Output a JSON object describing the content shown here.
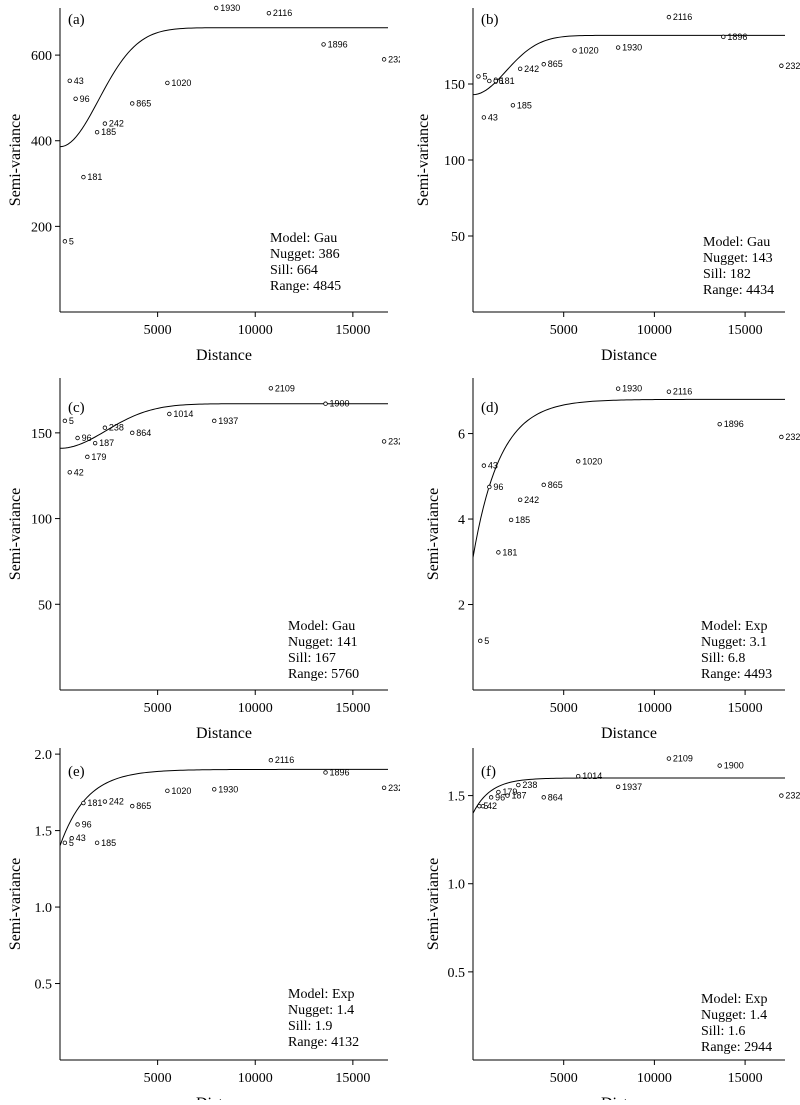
{
  "chart_data": [
    {
      "type": "scatter",
      "panel_label": "(a)",
      "xlabel": "Distance",
      "ylabel": "Semi-variance",
      "xlim": [
        0,
        16800
      ],
      "ylim": [
        0,
        710
      ],
      "xticks": [
        5000,
        10000,
        15000
      ],
      "yticks": [
        200,
        400,
        600
      ],
      "model": {
        "type": "Gau",
        "nugget": 386,
        "sill": 664,
        "range": 4845
      },
      "info": [
        "Model: Gau",
        "Nugget: 386",
        "Sill: 664",
        "Range: 4845"
      ],
      "points": [
        {
          "x": 250,
          "y": 165,
          "label": "5"
        },
        {
          "x": 500,
          "y": 540,
          "label": "43"
        },
        {
          "x": 800,
          "y": 498,
          "label": "96"
        },
        {
          "x": 1200,
          "y": 315,
          "label": "181"
        },
        {
          "x": 1900,
          "y": 420,
          "label": "185"
        },
        {
          "x": 2300,
          "y": 440,
          "label": "242"
        },
        {
          "x": 3700,
          "y": 487,
          "label": "865"
        },
        {
          "x": 5500,
          "y": 535,
          "label": "1020"
        },
        {
          "x": 8000,
          "y": 710,
          "label": "1930"
        },
        {
          "x": 10700,
          "y": 698,
          "label": "2116"
        },
        {
          "x": 13500,
          "y": 625,
          "label": "1896"
        },
        {
          "x": 16600,
          "y": 590,
          "label": "232"
        }
      ]
    },
    {
      "type": "scatter",
      "panel_label": "(b)",
      "xlabel": "Distance",
      "ylabel": "Semi-variance",
      "xlim": [
        0,
        17200
      ],
      "ylim": [
        0,
        200
      ],
      "xticks": [
        5000,
        10000,
        15000
      ],
      "yticks": [
        50,
        100,
        150
      ],
      "model": {
        "type": "Gau",
        "nugget": 143,
        "sill": 182,
        "range": 4434
      },
      "info": [
        "Model: Gau",
        "Nugget: 143",
        "Sill: 182",
        "Range: 4434"
      ],
      "points": [
        {
          "x": 300,
          "y": 155,
          "label": "5"
        },
        {
          "x": 900,
          "y": 152,
          "label": "96"
        },
        {
          "x": 1250,
          "y": 152,
          "label": "181"
        },
        {
          "x": 600,
          "y": 128,
          "label": "43"
        },
        {
          "x": 2200,
          "y": 136,
          "label": "185"
        },
        {
          "x": 2600,
          "y": 160,
          "label": "242"
        },
        {
          "x": 3900,
          "y": 163,
          "label": "865"
        },
        {
          "x": 5600,
          "y": 172,
          "label": "1020"
        },
        {
          "x": 8000,
          "y": 174,
          "label": "1930"
        },
        {
          "x": 10800,
          "y": 194,
          "label": "2116"
        },
        {
          "x": 13800,
          "y": 181,
          "label": "1896"
        },
        {
          "x": 17000,
          "y": 162,
          "label": "232"
        }
      ]
    },
    {
      "type": "scatter",
      "panel_label": "(c)",
      "xlabel": "Distance",
      "ylabel": "Semi-variance",
      "xlim": [
        0,
        16800
      ],
      "ylim": [
        0,
        182
      ],
      "xticks": [
        5000,
        10000,
        15000
      ],
      "yticks": [
        50,
        100,
        150
      ],
      "model": {
        "type": "Gau",
        "nugget": 141,
        "sill": 167,
        "range": 5760
      },
      "info": [
        "Model: Gau",
        "Nugget: 141",
        "Sill: 167",
        "Range: 5760"
      ],
      "points": [
        {
          "x": 250,
          "y": 157,
          "label": "5"
        },
        {
          "x": 900,
          "y": 147,
          "label": "96"
        },
        {
          "x": 500,
          "y": 127,
          "label": "42"
        },
        {
          "x": 1400,
          "y": 136,
          "label": "179"
        },
        {
          "x": 1800,
          "y": 144,
          "label": "187"
        },
        {
          "x": 2300,
          "y": 153,
          "label": "238"
        },
        {
          "x": 3700,
          "y": 150,
          "label": "864"
        },
        {
          "x": 5600,
          "y": 161,
          "label": "1014"
        },
        {
          "x": 7900,
          "y": 157,
          "label": "1937"
        },
        {
          "x": 10800,
          "y": 176,
          "label": "2109"
        },
        {
          "x": 13600,
          "y": 167,
          "label": "1900"
        },
        {
          "x": 16600,
          "y": 145,
          "label": "232"
        }
      ]
    },
    {
      "type": "scatter",
      "panel_label": "(d)",
      "xlabel": "Distance",
      "ylabel": "Semi-variance",
      "xlim": [
        0,
        17200
      ],
      "ylim": [
        0,
        7.3
      ],
      "xticks": [
        5000,
        10000,
        15000
      ],
      "yticks": [
        2,
        4,
        6
      ],
      "model": {
        "type": "Exp",
        "nugget": 3.1,
        "sill": 6.8,
        "range": 4493
      },
      "info": [
        "Model: Exp",
        "Nugget: 3.1",
        "Sill: 6.8",
        "Range: 4493"
      ],
      "points": [
        {
          "x": 400,
          "y": 1.15,
          "label": "5"
        },
        {
          "x": 600,
          "y": 5.25,
          "label": "43"
        },
        {
          "x": 900,
          "y": 4.75,
          "label": "96"
        },
        {
          "x": 1400,
          "y": 3.22,
          "label": "181"
        },
        {
          "x": 2100,
          "y": 3.98,
          "label": "185"
        },
        {
          "x": 2600,
          "y": 4.45,
          "label": "242"
        },
        {
          "x": 3900,
          "y": 4.8,
          "label": "865"
        },
        {
          "x": 5800,
          "y": 5.35,
          "label": "1020"
        },
        {
          "x": 8000,
          "y": 7.05,
          "label": "1930"
        },
        {
          "x": 10800,
          "y": 6.98,
          "label": "2116"
        },
        {
          "x": 13600,
          "y": 6.22,
          "label": "1896"
        },
        {
          "x": 17000,
          "y": 5.92,
          "label": "232"
        }
      ]
    },
    {
      "type": "scatter",
      "panel_label": "(e)",
      "xlabel": "Distance",
      "ylabel": "Semi-variance",
      "xlim": [
        0,
        16800
      ],
      "ylim": [
        0,
        2.04
      ],
      "xticks": [
        5000,
        10000,
        15000
      ],
      "yticks": [
        0.5,
        1.0,
        1.5,
        2.0
      ],
      "ytick_labels": [
        "0.5",
        "1.0",
        "1.5",
        "2.0"
      ],
      "model": {
        "type": "Exp",
        "nugget": 1.4,
        "sill": 1.9,
        "range": 4132
      },
      "info": [
        "Model: Exp",
        "Nugget: 1.4",
        "Sill: 1.9",
        "Range: 4132"
      ],
      "points": [
        {
          "x": 250,
          "y": 1.42,
          "label": "5"
        },
        {
          "x": 600,
          "y": 1.45,
          "label": "43"
        },
        {
          "x": 900,
          "y": 1.54,
          "label": "96"
        },
        {
          "x": 1200,
          "y": 1.68,
          "label": "181"
        },
        {
          "x": 1900,
          "y": 1.42,
          "label": "185"
        },
        {
          "x": 2300,
          "y": 1.69,
          "label": "242"
        },
        {
          "x": 3700,
          "y": 1.66,
          "label": "865"
        },
        {
          "x": 5500,
          "y": 1.76,
          "label": "1020"
        },
        {
          "x": 7900,
          "y": 1.77,
          "label": "1930"
        },
        {
          "x": 10800,
          "y": 1.96,
          "label": "2116"
        },
        {
          "x": 13600,
          "y": 1.88,
          "label": "1896"
        },
        {
          "x": 16600,
          "y": 1.78,
          "label": "232"
        }
      ]
    },
    {
      "type": "scatter",
      "panel_label": "(f)",
      "xlabel": "Distance",
      "ylabel": "Semi-variance",
      "xlim": [
        0,
        17200
      ],
      "ylim": [
        0,
        1.77
      ],
      "xticks": [
        5000,
        10000,
        15000
      ],
      "yticks": [
        0.5,
        1.0,
        1.5
      ],
      "ytick_labels": [
        "0.5",
        "1.0",
        "1.5"
      ],
      "model": {
        "type": "Exp",
        "nugget": 1.4,
        "sill": 1.6,
        "range": 2944
      },
      "info": [
        "Model: Exp",
        "Nugget: 1.4",
        "Sill: 1.6",
        "Range: 2944"
      ],
      "points": [
        {
          "x": 350,
          "y": 1.44,
          "label": "5"
        },
        {
          "x": 550,
          "y": 1.44,
          "label": "42"
        },
        {
          "x": 1000,
          "y": 1.49,
          "label": "96"
        },
        {
          "x": 1400,
          "y": 1.52,
          "label": "179"
        },
        {
          "x": 1900,
          "y": 1.5,
          "label": "187"
        },
        {
          "x": 2500,
          "y": 1.56,
          "label": "238"
        },
        {
          "x": 3900,
          "y": 1.49,
          "label": "864"
        },
        {
          "x": 5800,
          "y": 1.61,
          "label": "1014"
        },
        {
          "x": 8000,
          "y": 1.55,
          "label": "1937"
        },
        {
          "x": 10800,
          "y": 1.71,
          "label": "2109"
        },
        {
          "x": 13600,
          "y": 1.67,
          "label": "1900"
        },
        {
          "x": 17000,
          "y": 1.5,
          "label": "232"
        }
      ]
    }
  ]
}
